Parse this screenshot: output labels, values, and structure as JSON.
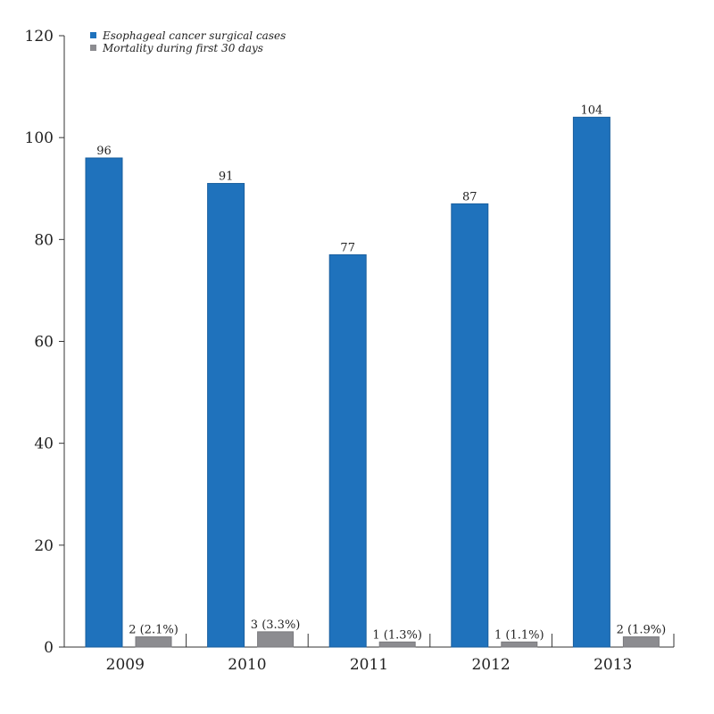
{
  "chart_data": {
    "type": "bar",
    "title": "",
    "xlabel": "",
    "ylabel": "",
    "categories": [
      "2009",
      "2010",
      "2011",
      "2012",
      "2013"
    ],
    "ylim": [
      0,
      120
    ],
    "yticks": [
      "0",
      "20",
      "40",
      "60",
      "80",
      "100",
      "120"
    ],
    "grid": false,
    "legend_position": "top-left",
    "series": [
      {
        "name": "Esophageal cancer surgical cases",
        "color": "#1f72bc",
        "values": [
          96,
          91,
          77,
          87,
          104
        ],
        "labels": [
          "96",
          "91",
          "77",
          "87",
          "104"
        ]
      },
      {
        "name": "Mortality during first 30 days",
        "color": "#8c8c90",
        "values": [
          2,
          3,
          1,
          1,
          2
        ],
        "labels": [
          "2 (2.1%)",
          "3 (3.3%)",
          "1 (1.3%)",
          "1 (1.1%)",
          "2 (1.9%)"
        ]
      }
    ]
  }
}
